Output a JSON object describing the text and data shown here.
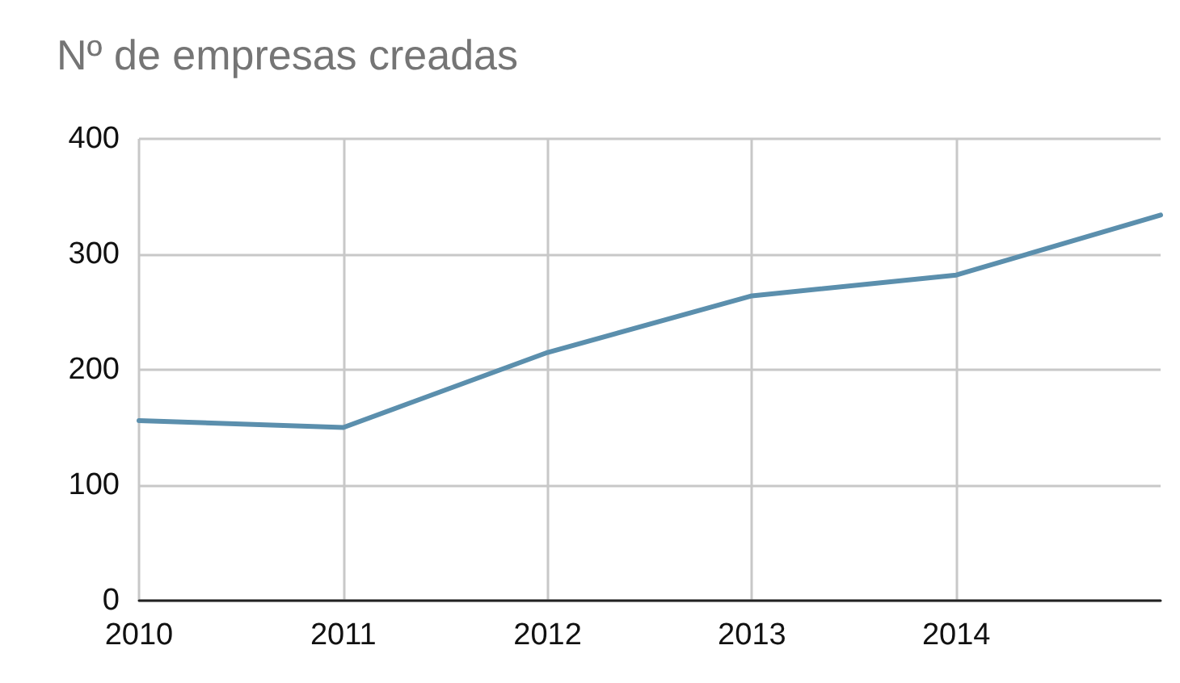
{
  "chart_data": {
    "type": "line",
    "title": "Nº de empresas creadas",
    "x": [
      2010,
      2011,
      2012,
      2013,
      2014,
      2015
    ],
    "series": [
      {
        "color": "#5b8fad",
        "values": [
          156,
          150,
          215,
          264,
          282,
          334
        ]
      }
    ],
    "xlim": [
      2010,
      2015
    ],
    "xticks": [
      2010,
      2011,
      2012,
      2013,
      2014
    ],
    "ylim": [
      0,
      400
    ],
    "yticks": [
      0,
      100,
      200,
      300,
      400
    ],
    "grid": true,
    "marker": "none",
    "line_style": "solid"
  }
}
